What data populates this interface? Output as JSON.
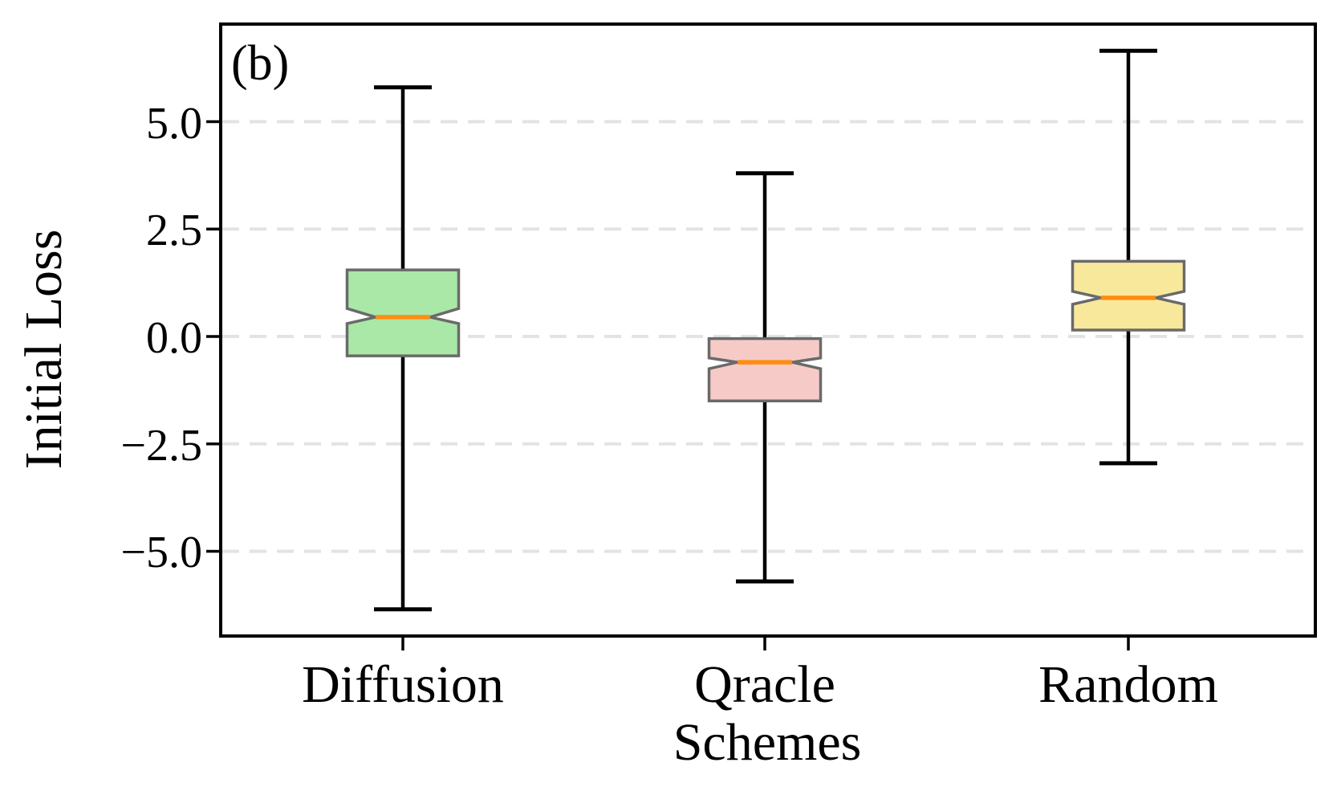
{
  "chart_data": {
    "type": "boxplot",
    "notched": true,
    "annotation": "(b)",
    "xlabel": "Schemes",
    "ylabel": "Initial Loss",
    "categories": [
      "Diffusion",
      "Qracle",
      "Random"
    ],
    "yticks": [
      5.0,
      2.5,
      0.0,
      -2.5,
      -5.0
    ],
    "yticklabels": [
      "5.0",
      "2.5",
      "0.0",
      "−2.5",
      "−5.0"
    ],
    "ylim": [
      -7.0,
      7.3
    ],
    "grid": "horizontal-dashed",
    "legend": "none",
    "series": [
      {
        "name": "Diffusion",
        "whisker_low": -6.35,
        "q1": -0.45,
        "median": 0.45,
        "q3": 1.55,
        "whisker_high": 5.8,
        "notch_low": 0.3,
        "notch_high": 0.65,
        "fill": "#aae8a8"
      },
      {
        "name": "Qracle",
        "whisker_low": -5.7,
        "q1": -1.5,
        "median": -0.6,
        "q3": -0.05,
        "whisker_high": 3.8,
        "notch_low": -0.75,
        "notch_high": -0.5,
        "fill": "#f6cbc7"
      },
      {
        "name": "Random",
        "whisker_low": -2.95,
        "q1": 0.15,
        "median": 0.9,
        "q3": 1.75,
        "whisker_high": 6.65,
        "notch_low": 0.75,
        "notch_high": 1.05,
        "fill": "#f8e89c"
      }
    ],
    "colors": {
      "median": "#ff8c12",
      "box_edge": "#6a6a6a",
      "whisker": "#000000",
      "grid": "#e3e3e3",
      "frame": "#000000",
      "text": "#000000"
    }
  }
}
